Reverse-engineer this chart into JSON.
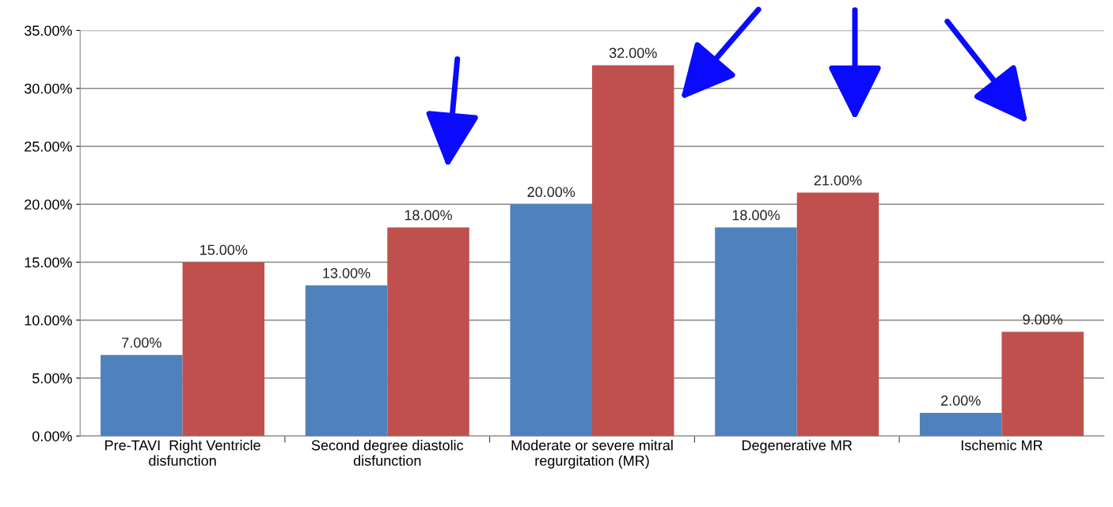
{
  "chart_data": {
    "type": "bar",
    "categories": [
      "Pre-TAVI  Right Ventricle\ndisfunction",
      "Second degree diastolic\ndisfunction",
      "Moderate or severe mitral\nregurgitation (MR)",
      "Degenerative MR",
      "Ischemic MR"
    ],
    "series": [
      {
        "color": "#4f81bd",
        "values": [
          7,
          13,
          20,
          18,
          2
        ],
        "value_labels": [
          "7.00%",
          "13.00%",
          "20.00%",
          "18.00%",
          "2.00%"
        ]
      },
      {
        "color": "#c0504d",
        "values": [
          15,
          18,
          32,
          21,
          9
        ],
        "value_labels": [
          "15.00%",
          "18.00%",
          "32.00%",
          "21.00%",
          "9.00%"
        ]
      }
    ],
    "ylim": [
      0,
      35
    ],
    "yticks": [
      {
        "value": 0,
        "label": "0.00%"
      },
      {
        "value": 5,
        "label": "5.00%"
      },
      {
        "value": 10,
        "label": "10.00%"
      },
      {
        "value": 15,
        "label": "15.00%"
      },
      {
        "value": 20,
        "label": "20.00%"
      },
      {
        "value": 25,
        "label": "25.00%"
      },
      {
        "value": 30,
        "label": "30.00%"
      },
      {
        "value": 35,
        "label": "35.00%"
      }
    ],
    "grid": "y",
    "legend": false
  }
}
